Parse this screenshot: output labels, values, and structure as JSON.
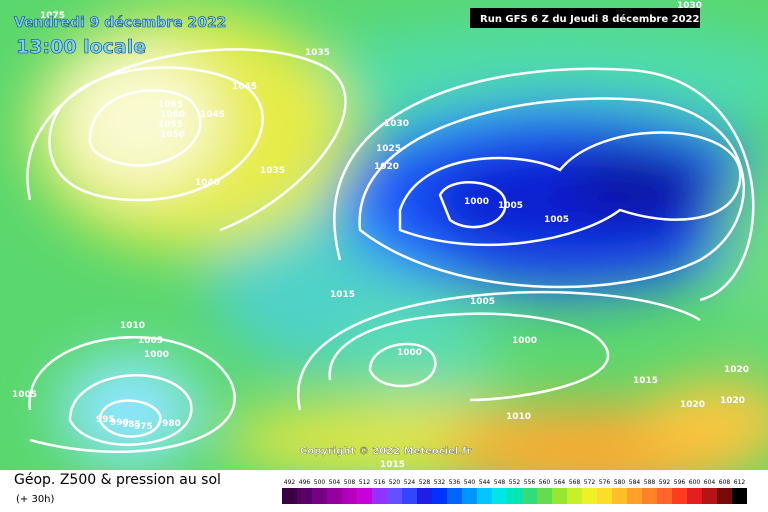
{
  "header": {
    "date": "Vendredi 9 décembre 2022",
    "time": "13:00 locale",
    "run": "Run GFS 6 Z du Jeudi 8 décembre 2022"
  },
  "copyright": "Copyright © 2022 Meteociel.fr",
  "isobar_labels": [
    1075,
    1035,
    1045,
    1065,
    1060,
    1055,
    1050,
    1045,
    1040,
    1035,
    1030,
    1025,
    1020,
    1015,
    1000,
    1005,
    1005,
    1005,
    1000,
    1000,
    1010,
    1005,
    1000,
    1005,
    995,
    990,
    985,
    975,
    980,
    1015,
    1020,
    1020,
    1020,
    1010,
    1015,
    1030
  ],
  "legend": {
    "title": "Géop. Z500 & pression au sol",
    "subtitle": "(+ 30h)",
    "scale": [
      492,
      496,
      500,
      504,
      508,
      512,
      516,
      520,
      524,
      528,
      532,
      536,
      540,
      544,
      548,
      552,
      556,
      560,
      564,
      568,
      572,
      576,
      580,
      584,
      588,
      592,
      596,
      600,
      604,
      608,
      612
    ],
    "colors": [
      "#3c0046",
      "#5a0064",
      "#780082",
      "#9600a0",
      "#b400be",
      "#c800dc",
      "#9632ff",
      "#6450ff",
      "#3246ff",
      "#1e1ee6",
      "#0032ff",
      "#0064ff",
      "#0096ff",
      "#00c8ff",
      "#00e6e6",
      "#00e6b4",
      "#32dc78",
      "#64dc50",
      "#96e632",
      "#c8f028",
      "#f0f028",
      "#ffdc28",
      "#ffbe28",
      "#ffa028",
      "#ff8228",
      "#ff6428",
      "#ff3c1e",
      "#e61e1e",
      "#b41414",
      "#780a0a",
      "#000000"
    ]
  }
}
